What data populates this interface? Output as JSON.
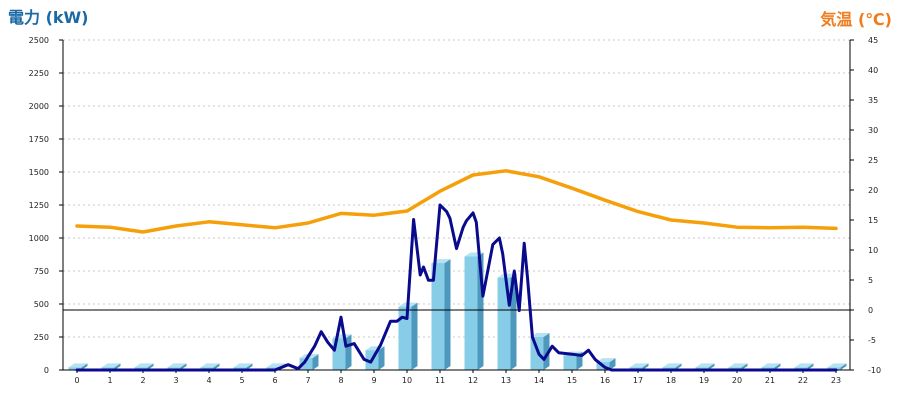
{
  "chart_data": {
    "type": "bar+line",
    "title": "",
    "xlabel": "",
    "y_left_label": "電力 (kW)",
    "y_right_label": "気温 (℃)",
    "x_ticks": [
      0,
      1,
      2,
      3,
      4,
      5,
      6,
      7,
      8,
      9,
      10,
      11,
      12,
      13,
      14,
      15,
      16,
      17,
      18,
      19,
      20,
      21,
      22,
      23
    ],
    "y_left_ticks": [
      0,
      250,
      500,
      750,
      1000,
      1250,
      1500,
      1750,
      2000,
      2250,
      2500
    ],
    "y_right_ticks": [
      -10,
      -5,
      0,
      5,
      10,
      15,
      20,
      25,
      30,
      35,
      40,
      45
    ],
    "y_left_lim": [
      0,
      2500
    ],
    "y_right_lim": [
      -10,
      45
    ],
    "grid": "horizontal-dashed",
    "colors": {
      "left_axis_label": "#1a6aa5",
      "right_axis_label": "#f07c1e",
      "bar_front": "#87cde8",
      "bar_side": "#4f98bd",
      "bar_top": "#b6e3f3",
      "power_line": "#0a0a8c",
      "temperature_line": "#f5a00a",
      "zero_line": "#000000",
      "grid": "#c8c8c8"
    },
    "series": [
      {
        "type": "bar",
        "axis": "left",
        "categories": [
          0,
          1,
          2,
          3,
          4,
          5,
          6,
          7,
          8,
          9,
          10,
          11,
          12,
          13,
          14,
          15,
          16,
          17,
          18,
          19,
          20,
          21,
          22,
          23
        ],
        "values": [
          20,
          20,
          20,
          20,
          20,
          20,
          20,
          90,
          240,
          150,
          480,
          810,
          860,
          700,
          250,
          110,
          60,
          20,
          20,
          20,
          20,
          20,
          20,
          20
        ]
      },
      {
        "type": "line",
        "axis": "left",
        "points": [
          [
            0,
            0
          ],
          [
            6.0,
            0
          ],
          [
            6.4,
            40
          ],
          [
            6.7,
            10
          ],
          [
            6.9,
            60
          ],
          [
            7.2,
            180
          ],
          [
            7.4,
            290
          ],
          [
            7.6,
            210
          ],
          [
            7.8,
            150
          ],
          [
            8.0,
            400
          ],
          [
            8.15,
            180
          ],
          [
            8.4,
            200
          ],
          [
            8.7,
            80
          ],
          [
            8.9,
            60
          ],
          [
            9.2,
            190
          ],
          [
            9.5,
            370
          ],
          [
            9.7,
            370
          ],
          [
            9.85,
            400
          ],
          [
            10.0,
            390
          ],
          [
            10.2,
            1140
          ],
          [
            10.4,
            720
          ],
          [
            10.5,
            780
          ],
          [
            10.65,
            680
          ],
          [
            10.8,
            680
          ],
          [
            11.0,
            1250
          ],
          [
            11.2,
            1200
          ],
          [
            11.3,
            1150
          ],
          [
            11.5,
            920
          ],
          [
            11.7,
            1080
          ],
          [
            11.8,
            1130
          ],
          [
            12.0,
            1190
          ],
          [
            12.1,
            1120
          ],
          [
            12.3,
            560
          ],
          [
            12.6,
            950
          ],
          [
            12.8,
            1000
          ],
          [
            12.9,
            880
          ],
          [
            13.1,
            490
          ],
          [
            13.25,
            750
          ],
          [
            13.4,
            450
          ],
          [
            13.55,
            960
          ],
          [
            13.65,
            700
          ],
          [
            13.8,
            250
          ],
          [
            14.0,
            120
          ],
          [
            14.15,
            80
          ],
          [
            14.4,
            180
          ],
          [
            14.6,
            130
          ],
          [
            15.0,
            120
          ],
          [
            15.3,
            110
          ],
          [
            15.5,
            150
          ],
          [
            15.7,
            80
          ],
          [
            16.0,
            20
          ],
          [
            16.2,
            0
          ],
          [
            23.0,
            0
          ]
        ]
      },
      {
        "type": "line",
        "axis": "right",
        "name": "",
        "points": [
          [
            0,
            14
          ],
          [
            1,
            13.8
          ],
          [
            2,
            13
          ],
          [
            3,
            14
          ],
          [
            4,
            14.7
          ],
          [
            5,
            14.2
          ],
          [
            6,
            13.7
          ],
          [
            7,
            14.5
          ],
          [
            8,
            16.1
          ],
          [
            9,
            15.8
          ],
          [
            10,
            16.5
          ],
          [
            11,
            19.8
          ],
          [
            12,
            22.5
          ],
          [
            13,
            23.2
          ],
          [
            14,
            22.2
          ],
          [
            15,
            20.3
          ],
          [
            16,
            18.3
          ],
          [
            17,
            16.4
          ],
          [
            18,
            15
          ],
          [
            19,
            14.5
          ],
          [
            20,
            13.8
          ],
          [
            21,
            13.7
          ],
          [
            22,
            13.8
          ],
          [
            23,
            13.6
          ]
        ]
      }
    ]
  }
}
